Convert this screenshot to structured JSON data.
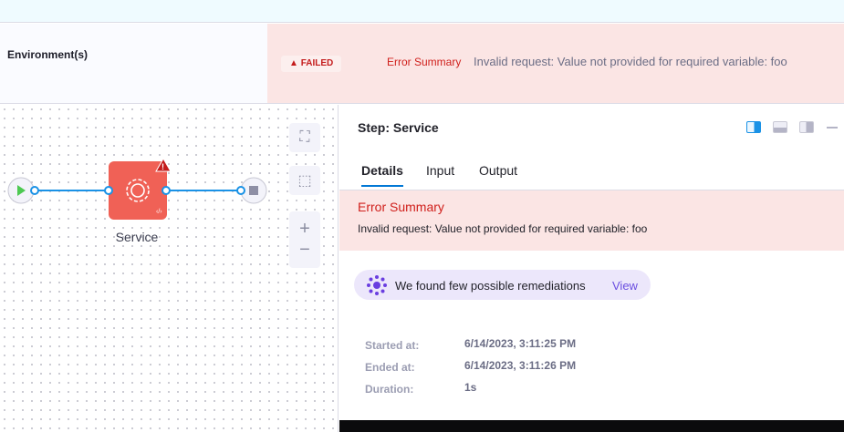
{
  "header": {
    "environment_label": "Environment(s)",
    "status_badge": "FAILED",
    "error_summary_label": "Error Summary",
    "error_message": "Invalid request: Value not provided for required variable: foo"
  },
  "pipeline": {
    "stage_name": "Service",
    "colors": {
      "stage": "#f06156",
      "connector": "#1a92e6"
    }
  },
  "panel": {
    "title": "Step: Service",
    "tabs": [
      {
        "label": "Details",
        "active": true
      },
      {
        "label": "Input"
      },
      {
        "label": "Output"
      }
    ],
    "error": {
      "title": "Error Summary",
      "message": "Invalid request: Value not provided for required variable: foo"
    },
    "remediation": {
      "text": "We found few possible remediations",
      "link": "View"
    },
    "details": [
      {
        "label": "Started at:",
        "value": "6/14/2023, 3:11:25 PM"
      },
      {
        "label": "Ended at:",
        "value": "6/14/2023, 3:11:26 PM"
      },
      {
        "label": "Duration:",
        "value": "1s"
      }
    ]
  }
}
